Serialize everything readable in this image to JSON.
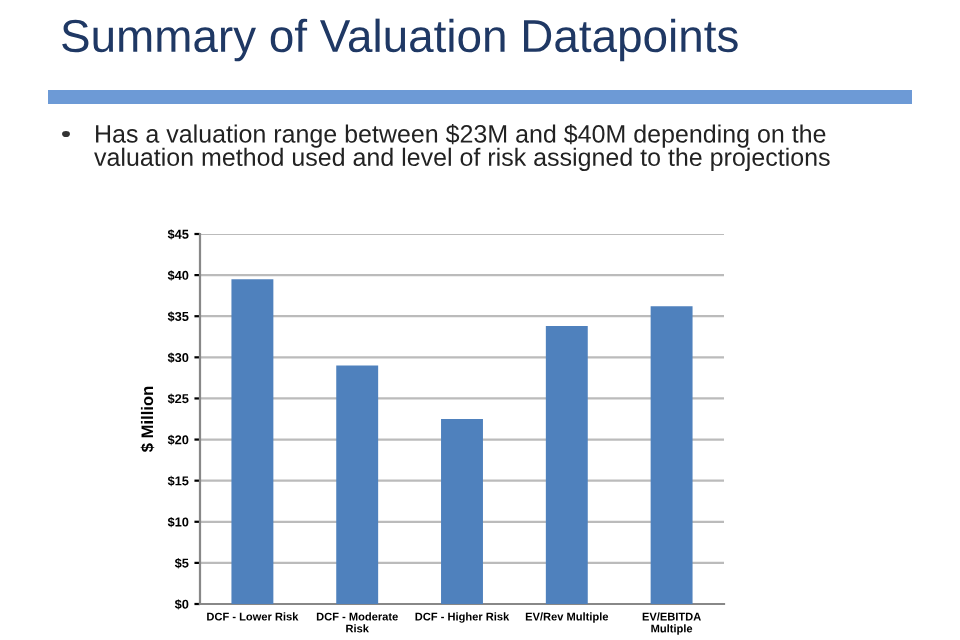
{
  "chart_data": {
    "type": "bar",
    "title": "Summary of Valuation Datapoints",
    "subtitle": "Has a valuation range between $23M and $40M depending on the\nvaluation method used and level of risk assigned to the projections",
    "ylabel": "$ Million",
    "categories": [
      "DCF - Lower Risk",
      "DCF - Moderate\nRisk",
      "DCF - Higher Risk",
      "EV/Rev Multiple",
      "EV/EBITDA\nMultiple"
    ],
    "values": [
      39.5,
      29,
      22.5,
      33.8,
      36.2
    ],
    "color": "#4f81bd",
    "ylim": [
      0,
      45
    ],
    "yticks": [
      {
        "value": 0,
        "label": "$0"
      },
      {
        "value": 5,
        "label": "$5"
      },
      {
        "value": 10,
        "label": "$10"
      },
      {
        "value": 15,
        "label": "$15"
      },
      {
        "value": 20,
        "label": "$20"
      },
      {
        "value": 25,
        "label": "$25"
      },
      {
        "value": 30,
        "label": "$30"
      },
      {
        "value": 35,
        "label": "$35"
      },
      {
        "value": 40,
        "label": "$40"
      },
      {
        "value": 45,
        "label": "$45"
      }
    ],
    "grid": "y"
  }
}
